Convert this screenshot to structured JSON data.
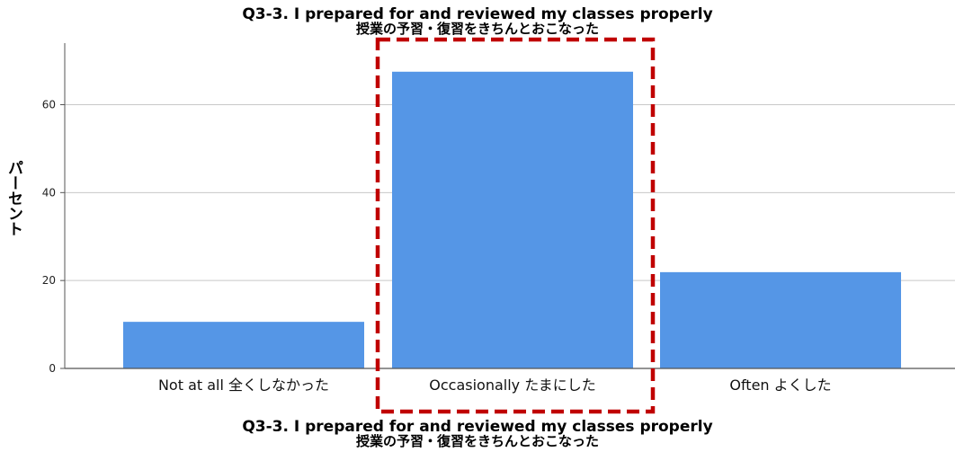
{
  "chart_data": {
    "type": "bar",
    "title": "Q3-3. I prepared for and reviewed my classes properly",
    "title_jp": "授業の予習・復習をきちんとおこなった",
    "xlabel": "Q3-3. I prepared for and reviewed my classes properly",
    "xlabel_jp": "授業の予習・復習をきちんとおこなった",
    "ylabel": "パーセント",
    "categories": [
      "Not at all 全くしなかった",
      "Occasionally たまにした",
      "Often よくした"
    ],
    "values": [
      10.6,
      67.5,
      21.9
    ],
    "ylim": [
      0,
      74
    ],
    "yticks": [
      0,
      20,
      40,
      60
    ],
    "grid": true,
    "highlight_index": 1,
    "colors": {
      "bar": "#5596e6",
      "grid": "#c8c8c8",
      "axis": "#555555",
      "highlight": "#c00000"
    }
  }
}
